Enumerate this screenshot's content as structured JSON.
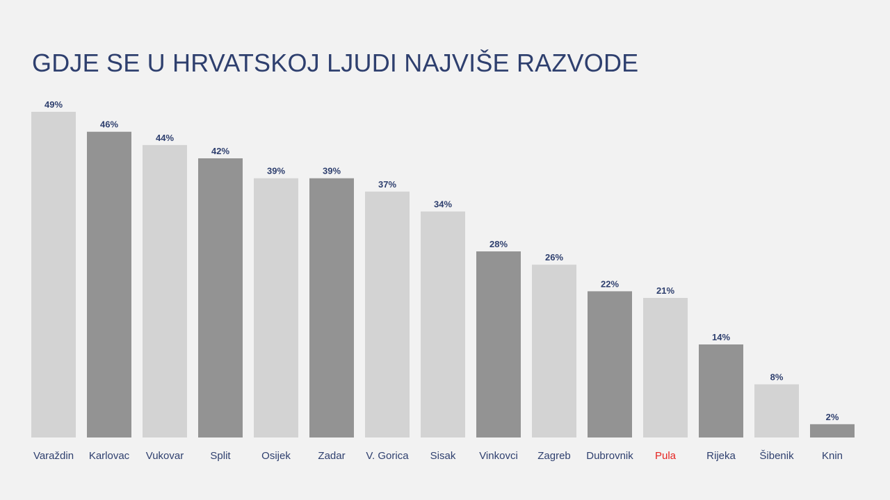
{
  "chart_data": {
    "type": "bar",
    "title": "GDJE SE U HRVATSKOJ LJUDI NAJVIŠE RAZVODE",
    "xlabel": "",
    "ylabel": "",
    "ylim": [
      0,
      49
    ],
    "grid": false,
    "legend": "none",
    "unit_suffix": "%",
    "categories": [
      "Varaždin",
      "Karlovac",
      "Vukovar",
      "Split",
      "Osijek",
      "Zadar",
      "V. Gorica",
      "Sisak",
      "Vinkovci",
      "Zagreb",
      "Dubrovnik",
      "Pula",
      "Rijeka",
      "Šibenik",
      "Knin"
    ],
    "values": [
      49,
      46,
      44,
      42,
      39,
      39,
      37,
      34,
      28,
      26,
      22,
      21,
      14,
      8,
      2
    ],
    "value_labels": [
      "49%",
      "46%",
      "44%",
      "42%",
      "39%",
      "39%",
      "37%",
      "34%",
      "28%",
      "26%",
      "22%",
      "21%",
      "14%",
      "8%",
      "2%"
    ],
    "bar_colors": [
      "#d3d3d3",
      "#939393",
      "#d3d3d3",
      "#939393",
      "#d3d3d3",
      "#939393",
      "#d3d3d3",
      "#d3d3d3",
      "#939393",
      "#d3d3d3",
      "#939393",
      "#d3d3d3",
      "#939393",
      "#d3d3d3",
      "#939393"
    ],
    "highlight_category": "Pula",
    "highlight_color": "#e52421",
    "text_color": "#2e3f6e",
    "background_color": "#f2f2f2"
  }
}
